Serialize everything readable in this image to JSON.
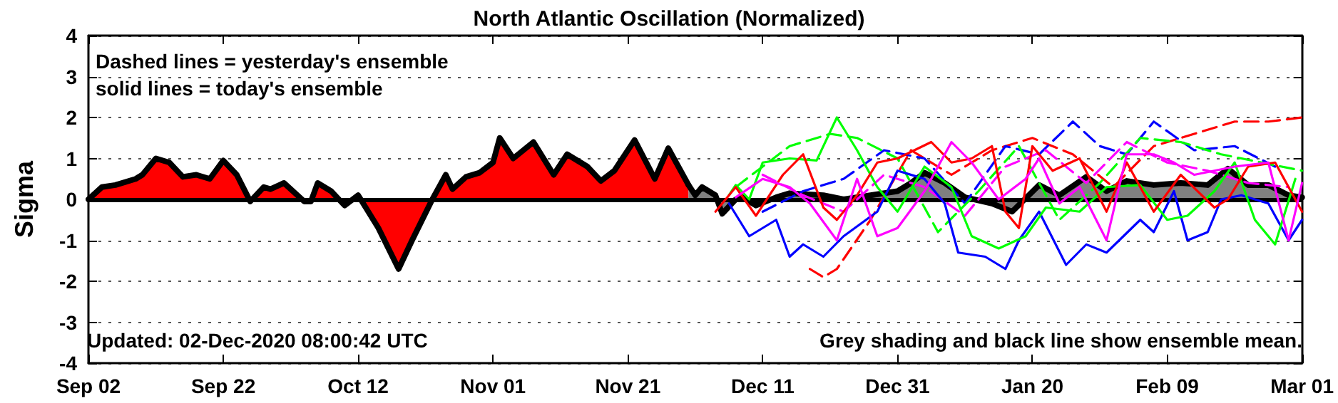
{
  "chart_data": {
    "type": "line",
    "title": "North Atlantic Oscillation (Normalized)",
    "ylabel": "Sigma",
    "annotations": [
      "Dashed lines = yesterday's ensemble",
      "solid lines = today's ensemble",
      "Updated: 02-Dec-2020 08:00:42 UTC",
      "Grey shading and black line show ensemble mean."
    ],
    "xlim": [
      "2020-09-02",
      "2021-03-01"
    ],
    "xticks": [
      {
        "value": "2020-09-02",
        "label": "Sep 02"
      },
      {
        "value": "2020-09-22",
        "label": "Sep 22"
      },
      {
        "value": "2020-10-12",
        "label": "Oct 12"
      },
      {
        "value": "2020-11-01",
        "label": "Nov 01"
      },
      {
        "value": "2020-11-21",
        "label": "Nov 21"
      },
      {
        "value": "2020-12-11",
        "label": "Dec 11"
      },
      {
        "value": "2020-12-31",
        "label": "Dec 31"
      },
      {
        "value": "2021-01-20",
        "label": "Jan 20"
      },
      {
        "value": "2021-02-09",
        "label": "Feb 09"
      },
      {
        "value": "2021-03-01",
        "label": "Mar 01"
      }
    ],
    "ylim": [
      -4,
      4
    ],
    "yticks": [
      -4,
      -3,
      -2,
      -1,
      0,
      1,
      2,
      3,
      4
    ],
    "grid": "y",
    "marker": "none",
    "ref_lines": [
      {
        "axis": "y",
        "value": 0,
        "color": "#000000"
      }
    ],
    "series": [
      {
        "line_style": "dashed",
        "color": "#ff0000",
        "x": [
          "2020-12-18",
          "2020-12-20",
          "2020-12-22",
          "2020-12-27",
          "2021-01-02",
          "2021-01-08",
          "2021-01-14",
          "2021-01-20",
          "2021-01-26",
          "2021-02-01",
          "2021-02-07",
          "2021-02-13",
          "2021-02-19",
          "2021-02-24",
          "2021-03-01"
        ],
        "values": [
          -1.7,
          -1.9,
          -1.7,
          -0.5,
          1.2,
          0.6,
          1.2,
          1.5,
          1.1,
          0.3,
          1.3,
          1.6,
          1.9,
          1.9,
          2.0
        ]
      },
      {
        "line_style": "dashed",
        "color": "#0000ff",
        "x": [
          "2020-12-11",
          "2020-12-17",
          "2020-12-23",
          "2020-12-29",
          "2021-01-04",
          "2021-01-10",
          "2021-01-16",
          "2021-01-21",
          "2021-01-26",
          "2021-01-30",
          "2021-02-03",
          "2021-02-07",
          "2021-02-13",
          "2021-02-19",
          "2021-02-25"
        ],
        "values": [
          -0.3,
          0.2,
          0.5,
          1.2,
          1.0,
          -0.1,
          1.3,
          1.1,
          1.9,
          1.3,
          1.1,
          1.9,
          1.2,
          1.3,
          0.8
        ]
      },
      {
        "line_style": "dashed",
        "color": "#00ff00",
        "x": [
          "2020-12-07",
          "2020-12-15",
          "2020-12-21",
          "2020-12-25",
          "2020-12-31",
          "2021-01-06",
          "2021-01-12",
          "2021-01-18",
          "2021-01-24",
          "2021-01-30",
          "2021-02-05",
          "2021-02-11",
          "2021-02-17",
          "2021-02-23",
          "2021-03-01"
        ],
        "values": [
          0.3,
          1.3,
          1.6,
          1.5,
          1.0,
          -0.8,
          0.2,
          1.3,
          -0.5,
          0.4,
          1.5,
          1.4,
          1.1,
          0.9,
          0.7
        ]
      },
      {
        "line_style": "dashed",
        "color": "#ff00ff",
        "x": [
          "2020-12-11",
          "2020-12-17",
          "2020-12-23",
          "2020-12-29",
          "2021-01-04",
          "2021-01-10",
          "2021-01-16",
          "2021-01-22",
          "2021-01-28",
          "2021-02-03",
          "2021-02-09",
          "2021-02-15",
          "2021-02-21",
          "2021-02-27"
        ],
        "values": [
          0.6,
          0.1,
          -0.3,
          0.6,
          0.3,
          -0.4,
          0.8,
          1.2,
          0.4,
          1.4,
          0.9,
          0.7,
          0.4,
          0.3
        ]
      },
      {
        "line_style": "solid",
        "color": "#0000ff",
        "x": [
          "2020-12-06",
          "2020-12-09",
          "2020-12-13",
          "2020-12-15",
          "2020-12-17",
          "2020-12-20",
          "2020-12-23",
          "2020-12-28",
          "2020-12-31",
          "2021-01-04",
          "2021-01-07",
          "2021-01-09",
          "2021-01-13",
          "2021-01-16",
          "2021-01-18",
          "2021-01-21",
          "2021-01-25",
          "2021-01-28",
          "2021-01-31",
          "2021-02-05",
          "2021-02-07",
          "2021-02-10",
          "2021-02-12",
          "2021-02-15",
          "2021-02-17",
          "2021-02-20",
          "2021-02-24",
          "2021-02-27",
          "2021-03-01"
        ],
        "values": [
          -0.1,
          -0.9,
          -0.5,
          -1.4,
          -1.1,
          -1.4,
          -0.9,
          -0.3,
          0.7,
          0.5,
          -0.1,
          -1.3,
          -1.4,
          -1.7,
          -1.0,
          -0.3,
          -1.6,
          -1.1,
          -1.3,
          -0.5,
          -0.8,
          0.2,
          -1.0,
          -0.8,
          0.0,
          0.1,
          -0.1,
          -1.0,
          -0.5
        ]
      },
      {
        "line_style": "solid",
        "color": "#00ff00",
        "x": [
          "2020-12-06",
          "2020-12-07",
          "2020-12-09",
          "2020-12-11",
          "2020-12-15",
          "2020-12-19",
          "2020-12-22",
          "2020-12-25",
          "2020-12-28",
          "2020-12-31",
          "2021-01-04",
          "2021-01-08",
          "2021-01-11",
          "2021-01-15",
          "2021-01-19",
          "2021-01-22",
          "2021-01-27",
          "2021-01-31",
          "2021-02-05",
          "2021-02-09",
          "2021-02-12",
          "2021-02-16",
          "2021-02-19",
          "2021-02-22",
          "2021-02-25",
          "2021-02-28"
        ],
        "values": [
          0.1,
          0.35,
          0.0,
          0.9,
          1.0,
          0.95,
          2.0,
          1.2,
          0.3,
          -0.3,
          0.8,
          0.3,
          -0.9,
          -1.2,
          -0.9,
          -0.2,
          -0.3,
          0.3,
          0.35,
          -0.5,
          -0.4,
          0.2,
          0.9,
          -0.5,
          -1.1,
          0.5
        ]
      },
      {
        "line_style": "solid",
        "color": "#ff0000",
        "x": [
          "2020-12-04",
          "2020-12-07",
          "2020-12-10",
          "2020-12-14",
          "2020-12-17",
          "2020-12-20",
          "2020-12-22",
          "2020-12-25",
          "2020-12-28",
          "2020-12-31",
          "2021-01-05",
          "2021-01-08",
          "2021-01-11",
          "2021-01-14",
          "2021-01-16",
          "2021-01-18",
          "2021-01-20",
          "2021-01-23",
          "2021-01-27",
          "2021-01-31",
          "2021-02-03",
          "2021-02-07",
          "2021-02-11",
          "2021-02-16",
          "2021-02-18",
          "2021-02-21",
          "2021-02-25",
          "2021-03-01"
        ],
        "values": [
          -0.3,
          0.3,
          -0.4,
          0.6,
          1.1,
          -0.2,
          -0.5,
          0.1,
          0.9,
          1.0,
          1.4,
          0.9,
          1.0,
          1.3,
          -0.3,
          -0.7,
          1.3,
          0.7,
          1.0,
          -0.3,
          0.9,
          -0.3,
          0.6,
          -0.2,
          0,
          0.8,
          0.9,
          -0.3
        ]
      },
      {
        "line_style": "solid",
        "color": "#ff00ff",
        "x": [
          "2020-12-07",
          "2020-12-11",
          "2020-12-15",
          "2020-12-18",
          "2020-12-22",
          "2020-12-25",
          "2020-12-28",
          "2020-12-31",
          "2021-01-04",
          "2021-01-08",
          "2021-01-11",
          "2021-01-15",
          "2021-01-19",
          "2021-01-21",
          "2021-01-24",
          "2021-01-27",
          "2021-01-31",
          "2021-02-03",
          "2021-02-07",
          "2021-02-10",
          "2021-02-13",
          "2021-02-19",
          "2021-02-24",
          "2021-02-27",
          "2021-03-01"
        ],
        "values": [
          0.05,
          0.5,
          0.3,
          -0.1,
          -1.0,
          0.5,
          -0.9,
          -0.7,
          0.2,
          1.4,
          0.9,
          0.0,
          0.5,
          1.0,
          -0.1,
          0.3,
          -1.0,
          1.1,
          1.1,
          0.9,
          0.6,
          0.8,
          0.9,
          -1.0,
          0.4
        ]
      },
      {
        "type": "area",
        "color": "#ff0000",
        "x": [
          "2020-09-02",
          "2020-09-04",
          "2020-09-06",
          "2020-09-09",
          "2020-09-10",
          "2020-09-11",
          "2020-09-12",
          "2020-09-14",
          "2020-09-16",
          "2020-09-18",
          "2020-09-20",
          "2020-09-22",
          "2020-09-24",
          "2020-09-26",
          "2020-09-28",
          "2020-09-29",
          "2020-10-01",
          "2020-10-04",
          "2020-10-05",
          "2020-10-06",
          "2020-10-08",
          "2020-10-10",
          "2020-10-12",
          "2020-10-15",
          "2020-10-18",
          "2020-10-20",
          "2020-10-23",
          "2020-10-25",
          "2020-10-26",
          "2020-10-28",
          "2020-10-30",
          "2020-11-01",
          "2020-11-02",
          "2020-11-04",
          "2020-11-07",
          "2020-11-10",
          "2020-11-12",
          "2020-11-15",
          "2020-11-17",
          "2020-11-19",
          "2020-11-22",
          "2020-11-25",
          "2020-11-27",
          "2020-11-30"
        ],
        "values": [
          0,
          0.3,
          0.35,
          0.5,
          0.6,
          0.8,
          1.0,
          0.9,
          0.55,
          0.6,
          0.5,
          0.95,
          0.6,
          -0.05,
          0.3,
          0.25,
          0.4,
          -0.05,
          -0.05,
          0.4,
          0.2,
          -0.15,
          0.1,
          -0.7,
          -1.7,
          -1.0,
          0,
          0.6,
          0.25,
          0.55,
          0.65,
          0.9,
          1.5,
          1.0,
          1.4,
          0.6,
          1.1,
          0.8,
          0.45,
          0.7,
          1.45,
          0.5,
          1.25,
          0.35
        ]
      },
      {
        "type": "area",
        "color": "#808080",
        "x": [
          "2020-11-30",
          "2020-12-01",
          "2020-12-02",
          "2020-12-04",
          "2020-12-05",
          "2020-12-07",
          "2020-12-08",
          "2020-12-10",
          "2020-12-13",
          "2020-12-15",
          "2020-12-20",
          "2020-12-23",
          "2020-12-27",
          "2020-12-31",
          "2021-01-02",
          "2021-01-04",
          "2021-01-07",
          "2021-01-10",
          "2021-01-14",
          "2021-01-17",
          "2021-01-21",
          "2021-01-24",
          "2021-01-28",
          "2021-01-31",
          "2021-02-03",
          "2021-02-07",
          "2021-02-11",
          "2021-02-15",
          "2021-02-18",
          "2021-02-21",
          "2021-02-24",
          "2021-02-27",
          "2021-03-01"
        ],
        "values": [
          0.35,
          0.1,
          0.3,
          0.1,
          -0.35,
          0,
          0.05,
          -0.15,
          0.05,
          0.15,
          0.1,
          0,
          0.1,
          0.2,
          0.4,
          0.65,
          0.4,
          0.05,
          -0.1,
          -0.3,
          0.35,
          0.1,
          0.55,
          0.2,
          0.45,
          0.35,
          0.4,
          0.35,
          0.75,
          0.35,
          0.35,
          0.1,
          0.05
        ]
      }
    ]
  }
}
